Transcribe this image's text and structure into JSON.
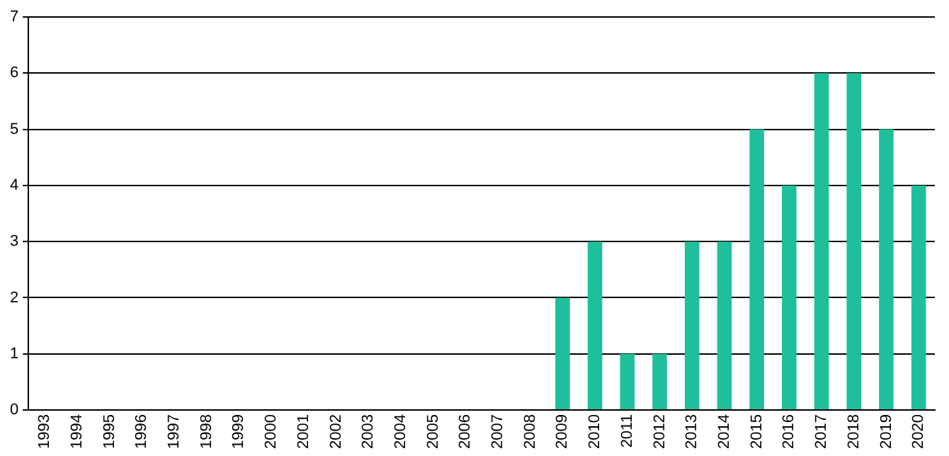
{
  "chart_data": {
    "type": "bar",
    "categories": [
      "1993",
      "1994",
      "1995",
      "1996",
      "1997",
      "1998",
      "1999",
      "2000",
      "2001",
      "2002",
      "2003",
      "2004",
      "2005",
      "2006",
      "2007",
      "2008",
      "2009",
      "2010",
      "2011",
      "2012",
      "2013",
      "2014",
      "2015",
      "2016",
      "2017",
      "2018",
      "2019",
      "2020"
    ],
    "values": [
      0,
      0,
      0,
      0,
      0,
      0,
      0,
      0,
      0,
      0,
      0,
      0,
      0,
      0,
      0,
      0,
      2,
      3,
      1,
      1,
      3,
      3,
      5,
      4,
      6,
      6,
      5,
      4
    ],
    "color": "#1fbf9b",
    "ylim": [
      0,
      7
    ],
    "yticks": [
      0,
      1,
      2,
      3,
      4,
      5,
      6,
      7
    ],
    "grid": "y"
  }
}
